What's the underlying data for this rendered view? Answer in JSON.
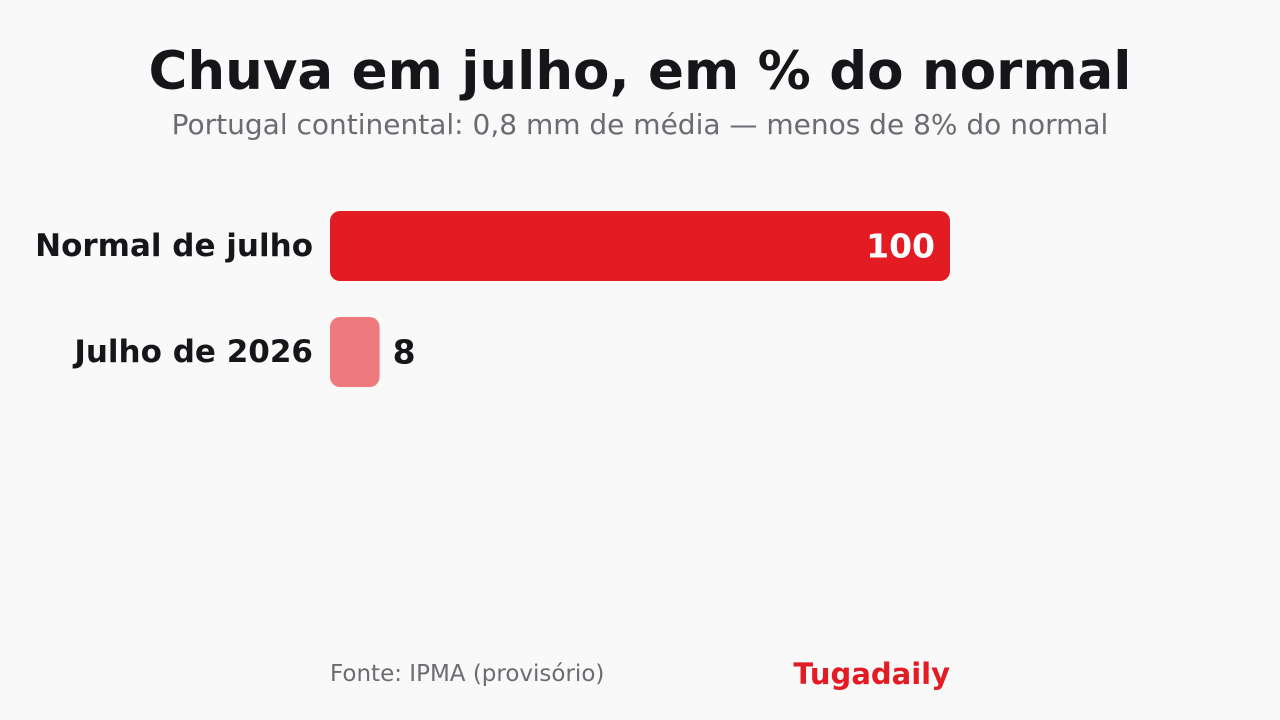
{
  "colors": {
    "primary": "#e31c23",
    "secondary": "#ef7a7e",
    "text": "#16161a",
    "muted": "#6b6b72",
    "inside_label": "#ffffff",
    "background": "#f9f9f9"
  },
  "chart_data": {
    "type": "bar",
    "orientation": "horizontal",
    "title": "Chuva em julho, em % do normal",
    "subtitle": "Portugal continental: 0,8 mm de média — menos de 8% do normal",
    "categories": [
      "Normal de julho",
      "Julho de 2026"
    ],
    "values": [
      100,
      8
    ],
    "value_labels": [
      "100",
      "8"
    ],
    "xlim": [
      0,
      100
    ],
    "grid": false,
    "legend": "none"
  },
  "footer": {
    "source": "Fonte: IPMA (provisório)",
    "brand": "Tugadaily"
  }
}
